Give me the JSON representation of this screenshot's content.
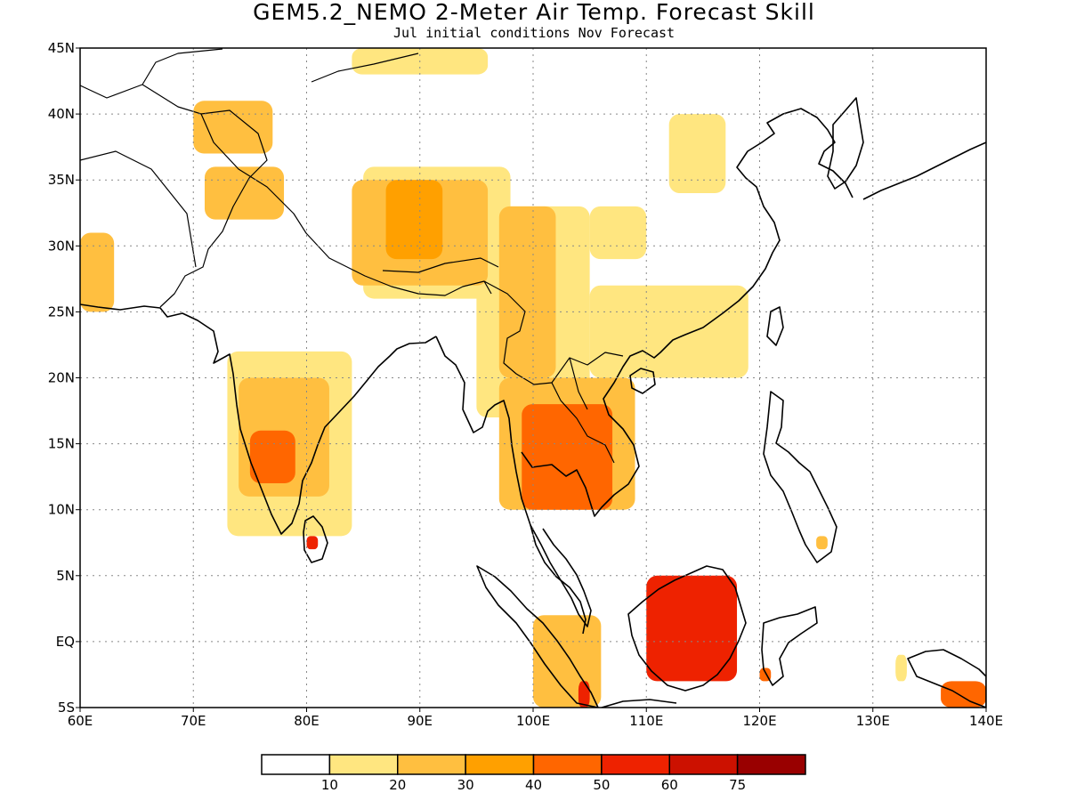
{
  "title": "GEM5.2_NEMO 2-Meter Air Temp. Forecast Skill",
  "subtitle": "Jul initial conditions  Nov Forecast",
  "map": {
    "lon_range": [
      60,
      140
    ],
    "lat_range": [
      -5,
      45
    ],
    "lon_ticks": [
      "60E",
      "70E",
      "80E",
      "90E",
      "100E",
      "110E",
      "120E",
      "130E",
      "140E"
    ],
    "lat_ticks": [
      "45N",
      "40N",
      "35N",
      "30N",
      "25N",
      "20N",
      "15N",
      "10N",
      "5N",
      "EQ",
      "5S"
    ],
    "grid": "dotted"
  },
  "colorbar": {
    "colors": [
      "#ffffff",
      "#ffe680",
      "#ffbf40",
      "#ffa000",
      "#ff6600",
      "#ee2200",
      "#cc1100",
      "#990000"
    ],
    "labels": [
      "10",
      "20",
      "30",
      "40",
      "50",
      "60",
      "75"
    ]
  },
  "chart_data": {
    "type": "heatmap",
    "title": "GEM5.2_NEMO 2-Meter Air Temp. Forecast Skill",
    "subtitle": "Jul initial conditions  Nov Forecast",
    "xlabel": "",
    "ylabel": "",
    "xlim": [
      60,
      140
    ],
    "ylim": [
      -5,
      45
    ],
    "levels": [
      10,
      20,
      30,
      40,
      50,
      60,
      75
    ],
    "regions": [
      {
        "lon": [
          84,
          96
        ],
        "lat": [
          43,
          45
        ],
        "level": 1
      },
      {
        "lon": [
          87,
          92
        ],
        "lat": [
          29,
          35
        ],
        "level": 3
      },
      {
        "lon": [
          84,
          96
        ],
        "lat": [
          27,
          35
        ],
        "level": 2
      },
      {
        "lon": [
          85,
          98
        ],
        "lat": [
          26,
          36
        ],
        "level": 1
      },
      {
        "lon": [
          70,
          77
        ],
        "lat": [
          37,
          41
        ],
        "level": 2
      },
      {
        "lon": [
          71,
          78
        ],
        "lat": [
          32,
          36
        ],
        "level": 2
      },
      {
        "lon": [
          60,
          63
        ],
        "lat": [
          25,
          31
        ],
        "level": 2
      },
      {
        "lon": [
          97,
          102
        ],
        "lat": [
          20,
          33
        ],
        "level": 2
      },
      {
        "lon": [
          95,
          105
        ],
        "lat": [
          17,
          33
        ],
        "level": 1
      },
      {
        "lon": [
          105,
          110
        ],
        "lat": [
          29,
          33
        ],
        "level": 1
      },
      {
        "lon": [
          105,
          119
        ],
        "lat": [
          20,
          27
        ],
        "level": 1
      },
      {
        "lon": [
          112,
          117
        ],
        "lat": [
          34,
          40
        ],
        "level": 1
      },
      {
        "lon": [
          73,
          84
        ],
        "lat": [
          8,
          22
        ],
        "level": 1
      },
      {
        "lon": [
          74,
          82
        ],
        "lat": [
          11,
          20
        ],
        "level": 2
      },
      {
        "lon": [
          75,
          79
        ],
        "lat": [
          12,
          16
        ],
        "level": 4
      },
      {
        "lon": [
          80,
          81
        ],
        "lat": [
          7,
          8
        ],
        "level": 5
      },
      {
        "lon": [
          99,
          107
        ],
        "lat": [
          10,
          18
        ],
        "level": 4
      },
      {
        "lon": [
          97,
          109
        ],
        "lat": [
          10,
          20
        ],
        "level": 2
      },
      {
        "lon": [
          110,
          118
        ],
        "lat": [
          -3,
          5
        ],
        "level": 5
      },
      {
        "lon": [
          100,
          106
        ],
        "lat": [
          -5,
          2
        ],
        "level": 2
      },
      {
        "lon": [
          104,
          105
        ],
        "lat": [
          -5,
          -3
        ],
        "level": 5
      },
      {
        "lon": [
          120,
          121
        ],
        "lat": [
          -3,
          -2
        ],
        "level": 4
      },
      {
        "lon": [
          136,
          140
        ],
        "lat": [
          -5,
          -3
        ],
        "level": 4
      },
      {
        "lon": [
          132,
          133
        ],
        "lat": [
          -3,
          -1
        ],
        "level": 1
      },
      {
        "lon": [
          125,
          126
        ],
        "lat": [
          7,
          8
        ],
        "level": 2
      }
    ]
  }
}
